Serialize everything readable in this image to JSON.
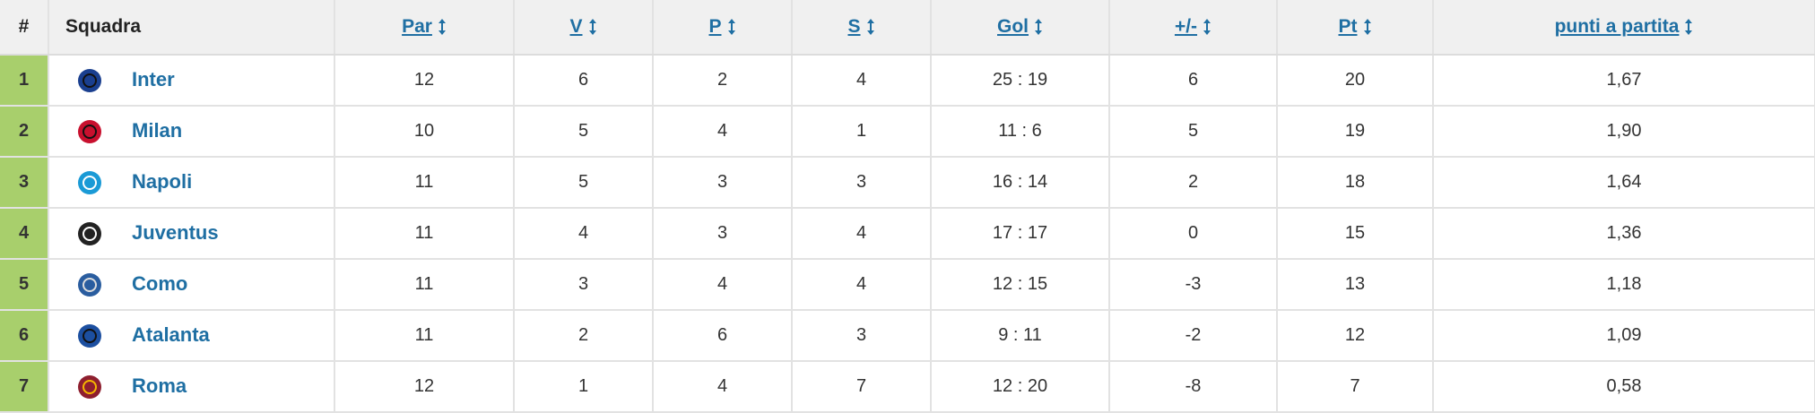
{
  "table": {
    "headers": [
      "#",
      "Squadra",
      "Par",
      "V",
      "P",
      "S",
      "Gol",
      "+/-",
      "Pt",
      "punti a partita"
    ],
    "rows": [
      [
        "1",
        "Inter",
        "12",
        "6",
        "2",
        "4",
        "25 : 19",
        "6",
        "20",
        "1,67"
      ],
      [
        "2",
        "Milan",
        "10",
        "5",
        "4",
        "1",
        "11 : 6",
        "5",
        "19",
        "1,90"
      ],
      [
        "3",
        "Napoli",
        "11",
        "5",
        "3",
        "3",
        "16 : 14",
        "2",
        "18",
        "1,64"
      ],
      [
        "4",
        "Juventus",
        "11",
        "4",
        "3",
        "4",
        "17 : 17",
        "0",
        "15",
        "1,36"
      ],
      [
        "5",
        "Como",
        "11",
        "3",
        "4",
        "4",
        "12 : 15",
        "-3",
        "13",
        "1,18"
      ],
      [
        "6",
        "Atalanta",
        "11",
        "2",
        "6",
        "3",
        "9 : 11",
        "-2",
        "12",
        "1,09"
      ],
      [
        "7",
        "Roma",
        "12",
        "1",
        "4",
        "7",
        "12 : 20",
        "-8",
        "7",
        "0,58"
      ]
    ]
  }
}
